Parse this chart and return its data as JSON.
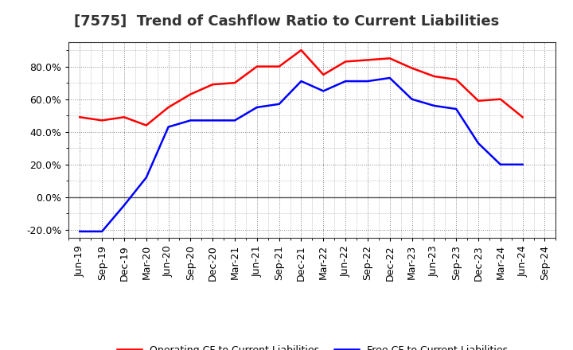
{
  "title": "[7575]  Trend of Cashflow Ratio to Current Liabilities",
  "x_labels": [
    "Jun-19",
    "Sep-19",
    "Dec-19",
    "Mar-20",
    "Jun-20",
    "Sep-20",
    "Dec-20",
    "Mar-21",
    "Jun-21",
    "Sep-21",
    "Dec-21",
    "Mar-22",
    "Jun-22",
    "Sep-22",
    "Dec-22",
    "Mar-23",
    "Jun-23",
    "Sep-23",
    "Dec-23",
    "Mar-24",
    "Jun-24",
    "Sep-24"
  ],
  "operating_cf": [
    0.49,
    0.47,
    0.49,
    0.44,
    0.55,
    0.63,
    0.69,
    0.7,
    0.8,
    0.8,
    0.9,
    0.75,
    0.83,
    0.84,
    0.85,
    0.79,
    0.74,
    0.72,
    0.59,
    0.6,
    0.49,
    null
  ],
  "free_cf": [
    -0.21,
    -0.21,
    -0.05,
    0.12,
    0.43,
    0.47,
    0.47,
    0.47,
    0.55,
    0.57,
    0.71,
    0.65,
    0.71,
    0.71,
    0.73,
    0.6,
    0.56,
    0.54,
    0.33,
    0.2,
    0.2,
    null
  ],
  "ylim": [
    -0.25,
    0.95
  ],
  "yticks": [
    -0.2,
    0.0,
    0.2,
    0.4,
    0.6,
    0.8
  ],
  "operating_color": "#FF0000",
  "free_color": "#0000FF",
  "background_color": "#FFFFFF",
  "plot_bg_color": "#FFFFFF",
  "grid_color": "#888888",
  "zero_line_color": "#555555",
  "legend_operating": "Operating CF to Current Liabilities",
  "legend_free": "Free CF to Current Liabilities",
  "title_fontsize": 13,
  "tick_fontsize": 9,
  "legend_fontsize": 9
}
